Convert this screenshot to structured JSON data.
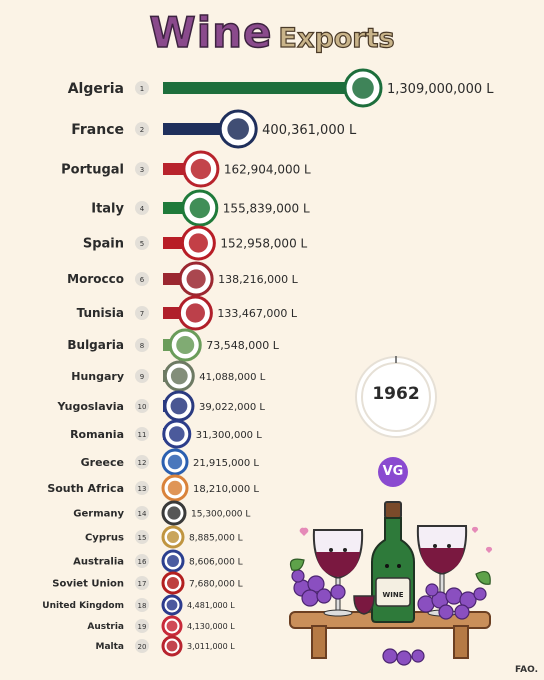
{
  "title": {
    "word1": "Wine",
    "word2": "Exports"
  },
  "year": "1962",
  "logo_text": "VG",
  "bottle_label": "WINE",
  "source": "FAO.",
  "chart_data": {
    "type": "bar",
    "title": "Wine Exports",
    "value_unit": "L",
    "categories": [
      "Algeria",
      "France",
      "Portugal",
      "Italy",
      "Spain",
      "Morocco",
      "Tunisia",
      "Bulgaria",
      "Hungary",
      "Yugoslavia",
      "Romania",
      "Greece",
      "South Africa",
      "Germany",
      "Cyprus",
      "Australia",
      "Soviet Union",
      "United Kingdom",
      "Austria",
      "Malta"
    ],
    "ranks": [
      1,
      2,
      3,
      4,
      5,
      6,
      7,
      8,
      9,
      10,
      11,
      12,
      13,
      14,
      15,
      16,
      17,
      18,
      19,
      20
    ],
    "values": [
      1309000000,
      400361000,
      162904000,
      155839000,
      152958000,
      138216000,
      133467000,
      73548000,
      41088000,
      39022000,
      31300000,
      21915000,
      18210000,
      15300000,
      8885000,
      8606000,
      7680000,
      4481000,
      4130000,
      3011000
    ],
    "value_labels": [
      "1,309,000,000 L",
      "400,361,000 L",
      "162,904,000 L",
      "155,839,000 L",
      "152,958,000 L",
      "138,216,000 L",
      "133,467,000 L",
      "73,548,000 L",
      "41,088,000 L",
      "39,022,000 L",
      "31,300,000 L",
      "21,915,000 L",
      "18,210,000 L",
      "15,300,000 L",
      "8,885,000 L",
      "8,606,000 L",
      "7,680,000 L",
      "4,481,000 L",
      "4,130,000 L",
      "3,011,000 L"
    ],
    "bar_colors": [
      "#1d6e3c",
      "#1f2f5c",
      "#b8232c",
      "#1f7a3a",
      "#b81d26",
      "#9b2730",
      "#b01f2a",
      "#6a9c5a",
      "#6d7a63",
      "#2a3a80",
      "#2c3d8a",
      "#2a5fb0",
      "#d9823a",
      "#3a3a3a",
      "#c09540",
      "#2b3f8f",
      "#b31f1f",
      "#2d3b8d",
      "#c82a3a",
      "#b8242f"
    ]
  }
}
